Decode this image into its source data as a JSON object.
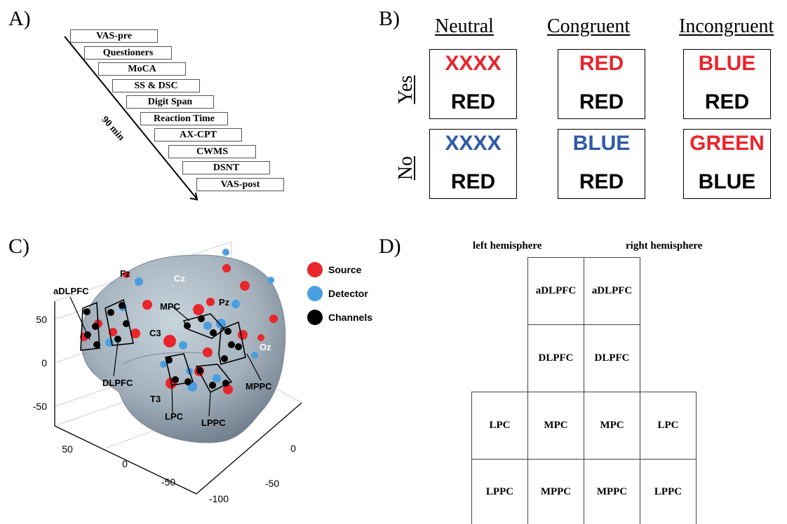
{
  "panel_a": {
    "label": "A)",
    "duration": "90 min",
    "steps": [
      "VAS-pre",
      "Questioners",
      "MoCA",
      "SS & DSC",
      "Digit Span",
      "Reaction Time",
      "AX-CPT",
      "CWMS",
      "DSNT",
      "VAS-post"
    ]
  },
  "panel_b": {
    "label": "B)",
    "columns": [
      "Neutral",
      "Congruent",
      "Incongruent"
    ],
    "rows": [
      "Yes",
      "No"
    ],
    "colors": {
      "red": "#e8262b",
      "blue": "#2e5aa7",
      "black": "#000000"
    },
    "cells": [
      [
        {
          "top": "XXXX",
          "top_color": "red",
          "bottom": "RED"
        },
        {
          "top": "RED",
          "top_color": "red",
          "bottom": "RED"
        },
        {
          "top": "BLUE",
          "top_color": "red",
          "bottom": "RED"
        }
      ],
      [
        {
          "top": "XXXX",
          "top_color": "blue",
          "bottom": "RED"
        },
        {
          "top": "BLUE",
          "top_color": "blue",
          "bottom": "RED"
        },
        {
          "top": "GREEN",
          "top_color": "red",
          "bottom": "BLUE"
        }
      ]
    ]
  },
  "panel_c": {
    "label": "C)",
    "legend": [
      {
        "name": "Source",
        "color": "#e8262b"
      },
      {
        "name": "Detector",
        "color": "#4a9ee0"
      },
      {
        "name": "Channels",
        "color": "#000000"
      }
    ],
    "electrodes": [
      "Fz",
      "Cz",
      "Pz",
      "C3",
      "Oz",
      "T3"
    ],
    "regions": [
      "aDLPFC",
      "MPC",
      "DLPFC",
      "MPPC",
      "LPC",
      "LPPC"
    ],
    "z_ticks": [
      "50",
      "0",
      "-50"
    ],
    "x_ticks": [
      "50",
      "0",
      "-50",
      "-100"
    ],
    "y_ticks": [
      "0",
      "-50"
    ]
  },
  "panel_d": {
    "label": "D)",
    "left_hemisphere": "left hemisphere",
    "right_hemisphere": "right hemisphere",
    "cells": {
      "r1": [
        "aDLPFC",
        "aDLPFC"
      ],
      "r2": [
        "DLPFC",
        "DLPFC"
      ],
      "r3": [
        "LPC",
        "MPC",
        "MPC",
        "LPC"
      ],
      "r4": [
        "LPPC",
        "MPPC",
        "MPPC",
        "LPPC"
      ]
    }
  }
}
